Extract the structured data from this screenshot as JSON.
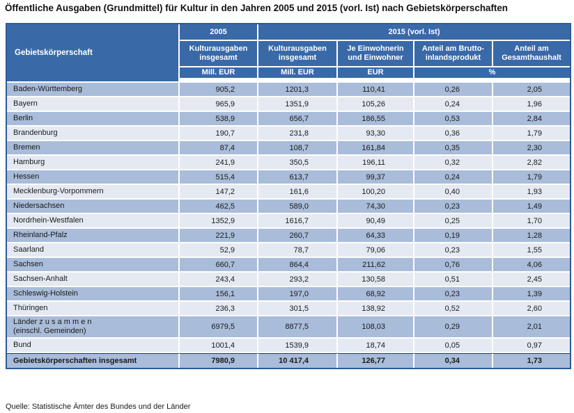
{
  "title": "Öffentliche Ausgaben (Grundmittel) für Kultur in den Jahren 2005 und 2015 (vorl. Ist) nach Gebietskörperschaften",
  "source": "Quelle: Statistische Ämter des Bundes und der Länder",
  "colors": {
    "header_blue": "#3A69A8",
    "row_dark": "#A9BCD9",
    "row_light": "#E4E9F2",
    "outer_border": "#2D5A96",
    "total_rule": "#17365D"
  },
  "table": {
    "corner_header": "Gebietskörperschaft",
    "year_groups": {
      "y2005": "2005",
      "y2015": "2015 (vorl. Ist)"
    },
    "sub_headers": {
      "col1": "Kulturausgaben insgesamt",
      "col2": "Kulturausgaben insgesamt",
      "col3": "Je Einwohnerin und Einwohner",
      "col4": "Anteil am Brutto-inlandsprodukt",
      "col5": "Anteil am Gesamthaushalt"
    },
    "unit_headers": {
      "col1": "Mill. EUR",
      "col2": "Mill. EUR",
      "col3": "EUR",
      "col45": "%"
    },
    "rows": [
      {
        "name": "Baden-Württemberg",
        "name2": "",
        "shade": "dark",
        "total": false,
        "values": [
          "905,2",
          "1201,3",
          "110,41",
          "0,26",
          "2,05"
        ]
      },
      {
        "name": "Bayern",
        "name2": "",
        "shade": "light",
        "total": false,
        "values": [
          "965,9",
          "1351,9",
          "105,26",
          "0,24",
          "1,96"
        ]
      },
      {
        "name": "Berlin",
        "name2": "",
        "shade": "dark",
        "total": false,
        "values": [
          "538,9",
          "656,7",
          "186,55",
          "0,53",
          "2,84"
        ]
      },
      {
        "name": "Brandenburg",
        "name2": "",
        "shade": "light",
        "total": false,
        "values": [
          "190,7",
          "231,8",
          "93,30",
          "0,36",
          "1,79"
        ]
      },
      {
        "name": "Bremen",
        "name2": "",
        "shade": "dark",
        "total": false,
        "values": [
          "87,4",
          "108,7",
          "161,84",
          "0,35",
          "2,30"
        ]
      },
      {
        "name": "Hamburg",
        "name2": "",
        "shade": "light",
        "total": false,
        "values": [
          "241,9",
          "350,5",
          "196,11",
          "0,32",
          "2,82"
        ]
      },
      {
        "name": "Hessen",
        "name2": "",
        "shade": "dark",
        "total": false,
        "values": [
          "515,4",
          "613,7",
          "99,37",
          "0,24",
          "1,79"
        ]
      },
      {
        "name": "Mecklenburg-Vorpommern",
        "name2": "",
        "shade": "light",
        "total": false,
        "values": [
          "147,2",
          "161,6",
          "100,20",
          "0,40",
          "1,93"
        ]
      },
      {
        "name": "Niedersachsen",
        "name2": "",
        "shade": "dark",
        "total": false,
        "values": [
          "462,5",
          "589,0",
          "74,30",
          "0,23",
          "1,49"
        ]
      },
      {
        "name": "Nordrhein-Westfalen",
        "name2": "",
        "shade": "light",
        "total": false,
        "values": [
          "1352,9",
          "1616,7",
          "90,49",
          "0,25",
          "1,70"
        ]
      },
      {
        "name": "Rheinland-Pfalz",
        "name2": "",
        "shade": "dark",
        "total": false,
        "values": [
          "221,9",
          "260,7",
          "64,33",
          "0,19",
          "1,28"
        ]
      },
      {
        "name": "Saarland",
        "name2": "",
        "shade": "light",
        "total": false,
        "values": [
          "52,9",
          "78,7",
          "79,06",
          "0,23",
          "1,55"
        ]
      },
      {
        "name": "Sachsen",
        "name2": "",
        "shade": "dark",
        "total": false,
        "values": [
          "660,7",
          "864,4",
          "211,62",
          "0,76",
          "4,06"
        ]
      },
      {
        "name": "Sachsen-Anhalt",
        "name2": "",
        "shade": "light",
        "total": false,
        "values": [
          "243,4",
          "293,2",
          "130,58",
          "0,51",
          "2,45"
        ]
      },
      {
        "name": "Schleswig-Holstein",
        "name2": "",
        "shade": "dark",
        "total": false,
        "values": [
          "156,1",
          "197,0",
          "68,92",
          "0,23",
          "1,39"
        ]
      },
      {
        "name": "Thüringen",
        "name2": "",
        "shade": "light",
        "total": false,
        "values": [
          "236,3",
          "301,5",
          "138,92",
          "0,52",
          "2,60"
        ]
      },
      {
        "name": "Länder z u s a m m e n",
        "name2": "(einschl. Gemeinden)",
        "shade": "dark",
        "total": false,
        "values": [
          "6979,5",
          "8877,5",
          "108,03",
          "0,29",
          "2,01"
        ]
      },
      {
        "name": "Bund",
        "name2": "",
        "shade": "light",
        "total": false,
        "values": [
          "1001,4",
          "1539,9",
          "18,74",
          "0,05",
          "0,97"
        ]
      },
      {
        "name": "Gebietskörperschaften insgesamt",
        "name2": "",
        "shade": "dark",
        "total": true,
        "values": [
          "7980,9",
          "10 417,4",
          "126,77",
          "0,34",
          "1,73"
        ]
      }
    ]
  }
}
